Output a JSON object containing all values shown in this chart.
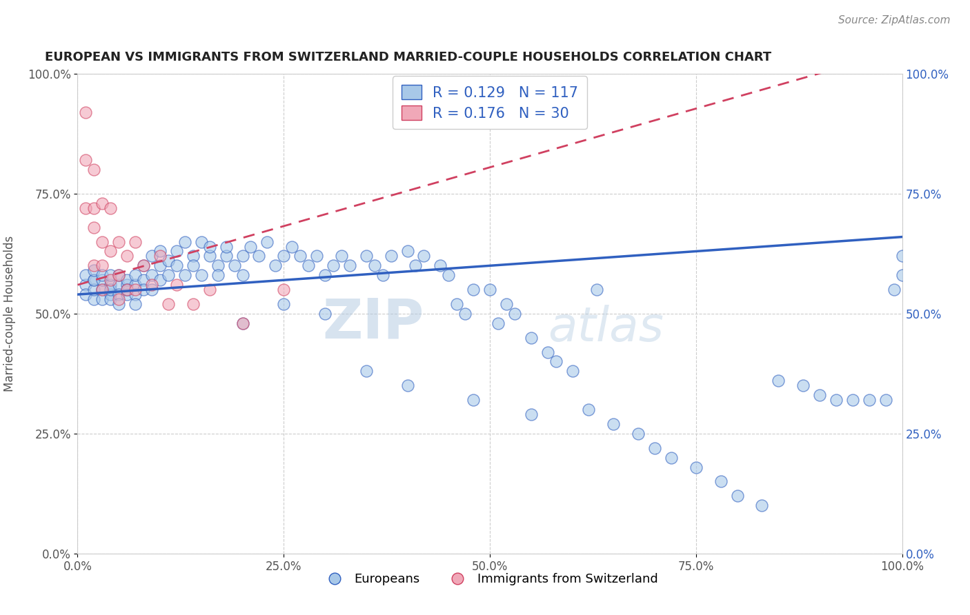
{
  "title": "EUROPEAN VS IMMIGRANTS FROM SWITZERLAND MARRIED-COUPLE HOUSEHOLDS CORRELATION CHART",
  "source": "Source: ZipAtlas.com",
  "ylabel": "Married-couple Households",
  "xlabel": "",
  "blue_R": 0.129,
  "blue_N": 117,
  "pink_R": 0.176,
  "pink_N": 30,
  "blue_color": "#a8c8e8",
  "pink_color": "#f0a8b8",
  "blue_line_color": "#3060c0",
  "pink_line_color": "#d04060",
  "title_color": "#222222",
  "source_color": "#888888",
  "legend_text_color": "#3060c0",
  "watermark_color": "#c8d8ee",
  "blue_trendline": [
    0.0,
    1.0,
    0.54,
    0.66
  ],
  "pink_trendline": [
    0.0,
    1.0,
    0.56,
    1.05
  ],
  "blue_scatter_x": [
    0.01,
    0.01,
    0.01,
    0.02,
    0.02,
    0.02,
    0.02,
    0.02,
    0.03,
    0.03,
    0.03,
    0.03,
    0.04,
    0.04,
    0.04,
    0.04,
    0.04,
    0.05,
    0.05,
    0.05,
    0.05,
    0.06,
    0.06,
    0.06,
    0.06,
    0.07,
    0.07,
    0.07,
    0.07,
    0.08,
    0.08,
    0.08,
    0.09,
    0.09,
    0.09,
    0.1,
    0.1,
    0.1,
    0.11,
    0.11,
    0.12,
    0.12,
    0.13,
    0.13,
    0.14,
    0.14,
    0.15,
    0.15,
    0.16,
    0.16,
    0.17,
    0.17,
    0.18,
    0.18,
    0.19,
    0.2,
    0.2,
    0.21,
    0.22,
    0.23,
    0.24,
    0.25,
    0.26,
    0.27,
    0.28,
    0.29,
    0.3,
    0.31,
    0.32,
    0.33,
    0.35,
    0.36,
    0.37,
    0.38,
    0.4,
    0.41,
    0.42,
    0.44,
    0.45,
    0.46,
    0.47,
    0.48,
    0.5,
    0.51,
    0.52,
    0.53,
    0.55,
    0.57,
    0.58,
    0.6,
    0.62,
    0.65,
    0.68,
    0.7,
    0.72,
    0.75,
    0.78,
    0.8,
    0.83,
    0.85,
    0.88,
    0.9,
    0.92,
    0.94,
    0.96,
    0.98,
    0.99,
    1.0,
    1.0,
    0.3,
    0.2,
    0.25,
    0.35,
    0.4,
    0.48,
    0.55,
    0.63
  ],
  "blue_scatter_y": [
    0.56,
    0.54,
    0.58,
    0.57,
    0.53,
    0.55,
    0.57,
    0.59,
    0.55,
    0.57,
    0.53,
    0.58,
    0.54,
    0.56,
    0.58,
    0.53,
    0.55,
    0.56,
    0.54,
    0.58,
    0.52,
    0.56,
    0.54,
    0.57,
    0.55,
    0.56,
    0.58,
    0.54,
    0.52,
    0.57,
    0.55,
    0.6,
    0.58,
    0.62,
    0.55,
    0.6,
    0.57,
    0.63,
    0.61,
    0.58,
    0.63,
    0.6,
    0.65,
    0.58,
    0.62,
    0.6,
    0.65,
    0.58,
    0.62,
    0.64,
    0.6,
    0.58,
    0.62,
    0.64,
    0.6,
    0.62,
    0.58,
    0.64,
    0.62,
    0.65,
    0.6,
    0.62,
    0.64,
    0.62,
    0.6,
    0.62,
    0.58,
    0.6,
    0.62,
    0.6,
    0.62,
    0.6,
    0.58,
    0.62,
    0.63,
    0.6,
    0.62,
    0.6,
    0.58,
    0.52,
    0.5,
    0.55,
    0.55,
    0.48,
    0.52,
    0.5,
    0.45,
    0.42,
    0.4,
    0.38,
    0.3,
    0.27,
    0.25,
    0.22,
    0.2,
    0.18,
    0.15,
    0.12,
    0.1,
    0.36,
    0.35,
    0.33,
    0.32,
    0.32,
    0.32,
    0.32,
    0.55,
    0.58,
    0.62,
    0.5,
    0.48,
    0.52,
    0.38,
    0.35,
    0.32,
    0.29,
    0.55
  ],
  "pink_scatter_x": [
    0.01,
    0.01,
    0.01,
    0.02,
    0.02,
    0.02,
    0.02,
    0.03,
    0.03,
    0.03,
    0.03,
    0.04,
    0.04,
    0.04,
    0.05,
    0.05,
    0.05,
    0.06,
    0.06,
    0.07,
    0.07,
    0.08,
    0.09,
    0.1,
    0.11,
    0.12,
    0.14,
    0.16,
    0.2,
    0.25
  ],
  "pink_scatter_y": [
    0.92,
    0.82,
    0.72,
    0.8,
    0.72,
    0.68,
    0.6,
    0.73,
    0.65,
    0.6,
    0.55,
    0.72,
    0.63,
    0.57,
    0.65,
    0.58,
    0.53,
    0.62,
    0.55,
    0.65,
    0.55,
    0.6,
    0.56,
    0.62,
    0.52,
    0.56,
    0.52,
    0.55,
    0.48,
    0.55
  ]
}
